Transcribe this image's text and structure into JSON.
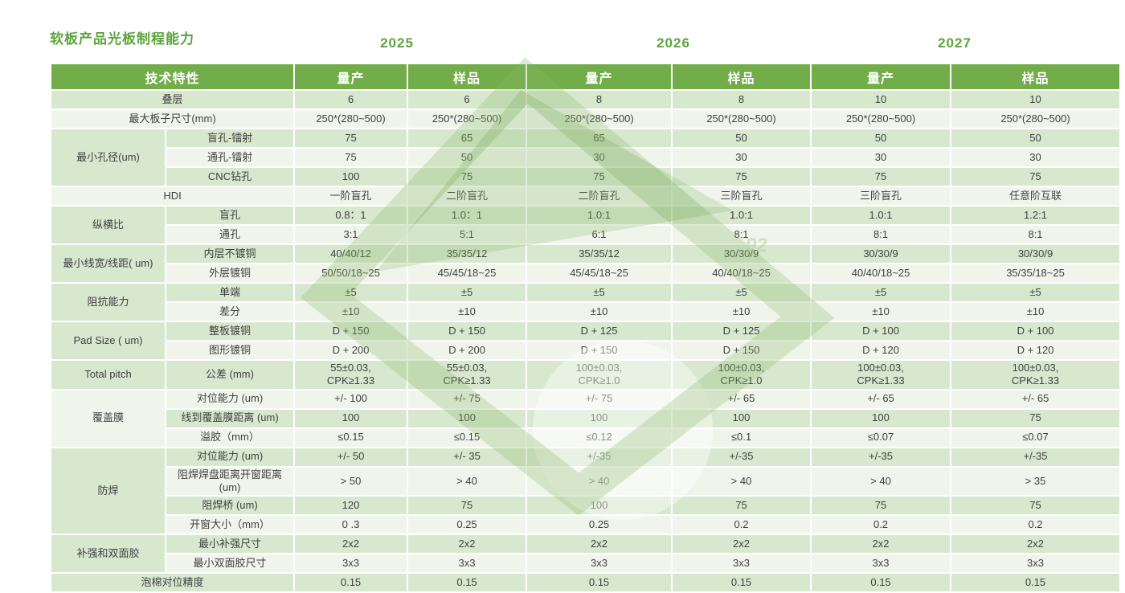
{
  "title": "软板产品光板制程能力",
  "years": [
    "2025",
    "2026",
    "2027"
  ],
  "watermark_text": "92",
  "colors": {
    "header_bg": "#72ad4a",
    "title_green": "#5ca43c",
    "row_green": "#d8e8cf",
    "row_light": "#f0f5ec",
    "header_text": "#ffffff",
    "body_text": "#3f3f3f"
  },
  "table": {
    "feature_header": "技术特性",
    "column_headers": [
      "量产",
      "样品",
      "量产",
      "样品",
      "量产",
      "样品"
    ],
    "rows": [
      {
        "type": "full",
        "label": "叠层",
        "values": [
          "6",
          "6",
          "8",
          "8",
          "10",
          "10"
        ]
      },
      {
        "type": "full",
        "label": "最大板子尺寸(mm)",
        "values": [
          "250*(280~500)",
          "250*(280~500)",
          "250*(280~500)",
          "250*(280~500)",
          "250*(280~500)",
          "250*(280~500)"
        ]
      },
      {
        "type": "group",
        "category": "最小孔径(um)",
        "subrows": [
          {
            "label": "盲孔-镭射",
            "values": [
              "75",
              "65",
              "65",
              "50",
              "50",
              "50"
            ]
          },
          {
            "label": "通孔-镭射",
            "values": [
              "75",
              "50",
              "30",
              "30",
              "30",
              "30"
            ]
          },
          {
            "label": "CNC钻孔",
            "values": [
              "100",
              "75",
              "75",
              "75",
              "75",
              "75"
            ]
          }
        ]
      },
      {
        "type": "full",
        "label": "HDI",
        "values": [
          "一阶盲孔",
          "二阶盲孔",
          "二阶盲孔",
          "三阶盲孔",
          "三阶盲孔",
          "任意阶互联"
        ]
      },
      {
        "type": "group",
        "category": "纵横比",
        "subrows": [
          {
            "label": "盲孔",
            "values": [
              "0.8：1",
              "1.0：1",
              "1.0:1",
              "1.0:1",
              "1.0:1",
              "1.2:1"
            ]
          },
          {
            "label": "通孔",
            "values": [
              "3:1",
              "5:1",
              "6:1",
              "8:1",
              "8:1",
              "8:1"
            ]
          }
        ]
      },
      {
        "type": "group",
        "category": "最小线宽/线距( um)",
        "subrows": [
          {
            "label": "内层不镀铜",
            "values": [
              "40/40/12",
              "35/35/12",
              "35/35/12",
              "30/30/9",
              "30/30/9",
              "30/30/9"
            ]
          },
          {
            "label": "外层镀铜",
            "values": [
              "50/50/18~25",
              "45/45/18~25",
              "45/45/18~25",
              "40/40/18~25",
              "40/40/18~25",
              "35/35/18~25"
            ]
          }
        ]
      },
      {
        "type": "group",
        "category": "阻抗能力",
        "subrows": [
          {
            "label": "单端",
            "values": [
              "±5",
              "±5",
              "±5",
              "±5",
              "±5",
              "±5"
            ]
          },
          {
            "label": "差分",
            "values": [
              "±10",
              "±10",
              "±10",
              "±10",
              "±10",
              "±10"
            ]
          }
        ]
      },
      {
        "type": "group",
        "category": "Pad Size ( um)",
        "subrows": [
          {
            "label": "整板镀铜",
            "values": [
              "D + 150",
              "D + 150",
              "D + 125",
              "D + 125",
              "D + 100",
              "D + 100"
            ]
          },
          {
            "label": "图形镀铜",
            "values": [
              "D + 200",
              "D + 200",
              "D + 150",
              "D + 150",
              "D + 120",
              "D + 120"
            ]
          }
        ]
      },
      {
        "type": "group",
        "category": "Total pitch",
        "subrows": [
          {
            "label": "公差 (mm)",
            "values": [
              "55±0.03,\nCPK≥1.33",
              "55±0.03,\nCPK≥1.33",
              "100±0.03,\nCPK≥1.0",
              "100±0.03,\nCPK≥1.0",
              "100±0.03,\nCPK≥1.33",
              "100±0.03,\nCPK≥1.33"
            ]
          }
        ]
      },
      {
        "type": "group",
        "category": "覆盖膜",
        "subrows": [
          {
            "label": "对位能力 (um)",
            "values": [
              "+/- 100",
              "+/- 75",
              "+/- 75",
              "+/- 65",
              "+/- 65",
              "+/- 65"
            ]
          },
          {
            "label": "线到覆盖膜距离 (um)",
            "values": [
              "100",
              "100",
              "100",
              "100",
              "100",
              "75"
            ]
          },
          {
            "label": "溢胶（mm）",
            "values": [
              "≤0.15",
              "≤0.15",
              "≤0.12",
              "≤0.1",
              "≤0.07",
              "≤0.07"
            ]
          }
        ]
      },
      {
        "type": "group",
        "category": "防焊",
        "subrows": [
          {
            "label": "对位能力 (um)",
            "values": [
              "+/- 50",
              "+/- 35",
              "+/-35",
              "+/-35",
              "+/-35",
              "+/-35"
            ]
          },
          {
            "label": "阻焊焊盘距离开窗距离 (um)",
            "values": [
              "> 50",
              "> 40",
              "> 40",
              "> 40",
              "> 40",
              "> 35"
            ]
          },
          {
            "label": "阻焊桥 (um)",
            "values": [
              "120",
              "75",
              "100",
              "75",
              "75",
              "75"
            ]
          },
          {
            "label": "开窗大小（mm）",
            "values": [
              "0 .3",
              "0.25",
              "0.25",
              "0.2",
              "0.2",
              "0.2"
            ]
          }
        ]
      },
      {
        "type": "group",
        "category": "补强和双面胶",
        "subrows": [
          {
            "label": "最小补强尺寸",
            "values": [
              "2x2",
              "2x2",
              "2x2",
              "2x2",
              "2x2",
              "2x2"
            ]
          },
          {
            "label": "最小双面胶尺寸",
            "values": [
              "3x3",
              "3x3",
              "3x3",
              "3x3",
              "3x3",
              "3x3"
            ]
          }
        ]
      },
      {
        "type": "full",
        "label": "泡棉对位精度",
        "values": [
          "0.15",
          "0.15",
          "0.15",
          "0.15",
          "0.15",
          "0.15"
        ]
      }
    ]
  }
}
